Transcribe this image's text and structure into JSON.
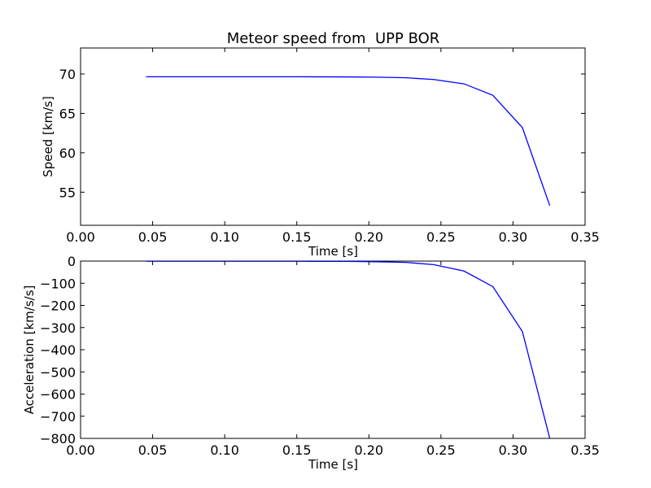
{
  "chart_data": [
    {
      "type": "line",
      "title": "Meteor speed from  UPP BOR",
      "xlabel": "Time [s]",
      "ylabel": "Speed [km/s]",
      "xlim": [
        0.0,
        0.35
      ],
      "ylim": [
        50.8,
        73.3
      ],
      "xticks": [
        0.0,
        0.05,
        0.1,
        0.15,
        0.2,
        0.25,
        0.3,
        0.35
      ],
      "xtick_labels": [
        "0.00",
        "0.05",
        "0.10",
        "0.15",
        "0.20",
        "0.25",
        "0.30",
        "0.35"
      ],
      "yticks": [
        55,
        60,
        65,
        70
      ],
      "ytick_labels": [
        "55",
        "60",
        "65",
        "70"
      ],
      "grid": false,
      "series": [
        {
          "color": "#0000ff",
          "x": [
            0.0455,
            0.1,
            0.15,
            0.185,
            0.205,
            0.226,
            0.245,
            0.266,
            0.286,
            0.3065,
            0.3255
          ],
          "y": [
            69.65,
            69.65,
            69.65,
            69.63,
            69.6,
            69.52,
            69.3,
            68.75,
            67.3,
            63.2,
            53.3
          ]
        }
      ]
    },
    {
      "type": "line",
      "title": "",
      "xlabel": "Time [s]",
      "ylabel": "Acceleration [km/s/s]",
      "xlim": [
        0.0,
        0.35
      ],
      "ylim": [
        -800,
        0
      ],
      "xticks": [
        0.0,
        0.05,
        0.1,
        0.15,
        0.2,
        0.25,
        0.3,
        0.35
      ],
      "xtick_labels": [
        "0.00",
        "0.05",
        "0.10",
        "0.15",
        "0.20",
        "0.25",
        "0.30",
        "0.35"
      ],
      "yticks": [
        0,
        -100,
        -200,
        -300,
        -400,
        -500,
        -600,
        -700,
        -800
      ],
      "ytick_labels": [
        "0",
        "−100",
        "−200",
        "−300",
        "−400",
        "−500",
        "−600",
        "−700",
        "−800"
      ],
      "grid": false,
      "series": [
        {
          "color": "#0000ff",
          "x": [
            0.0455,
            0.1,
            0.15,
            0.185,
            0.205,
            0.226,
            0.245,
            0.266,
            0.286,
            0.3065,
            0.3255
          ],
          "y": [
            -1,
            -1,
            -1,
            -1.5,
            -3,
            -6,
            -16,
            -45,
            -115,
            -318,
            -800
          ]
        }
      ]
    }
  ]
}
